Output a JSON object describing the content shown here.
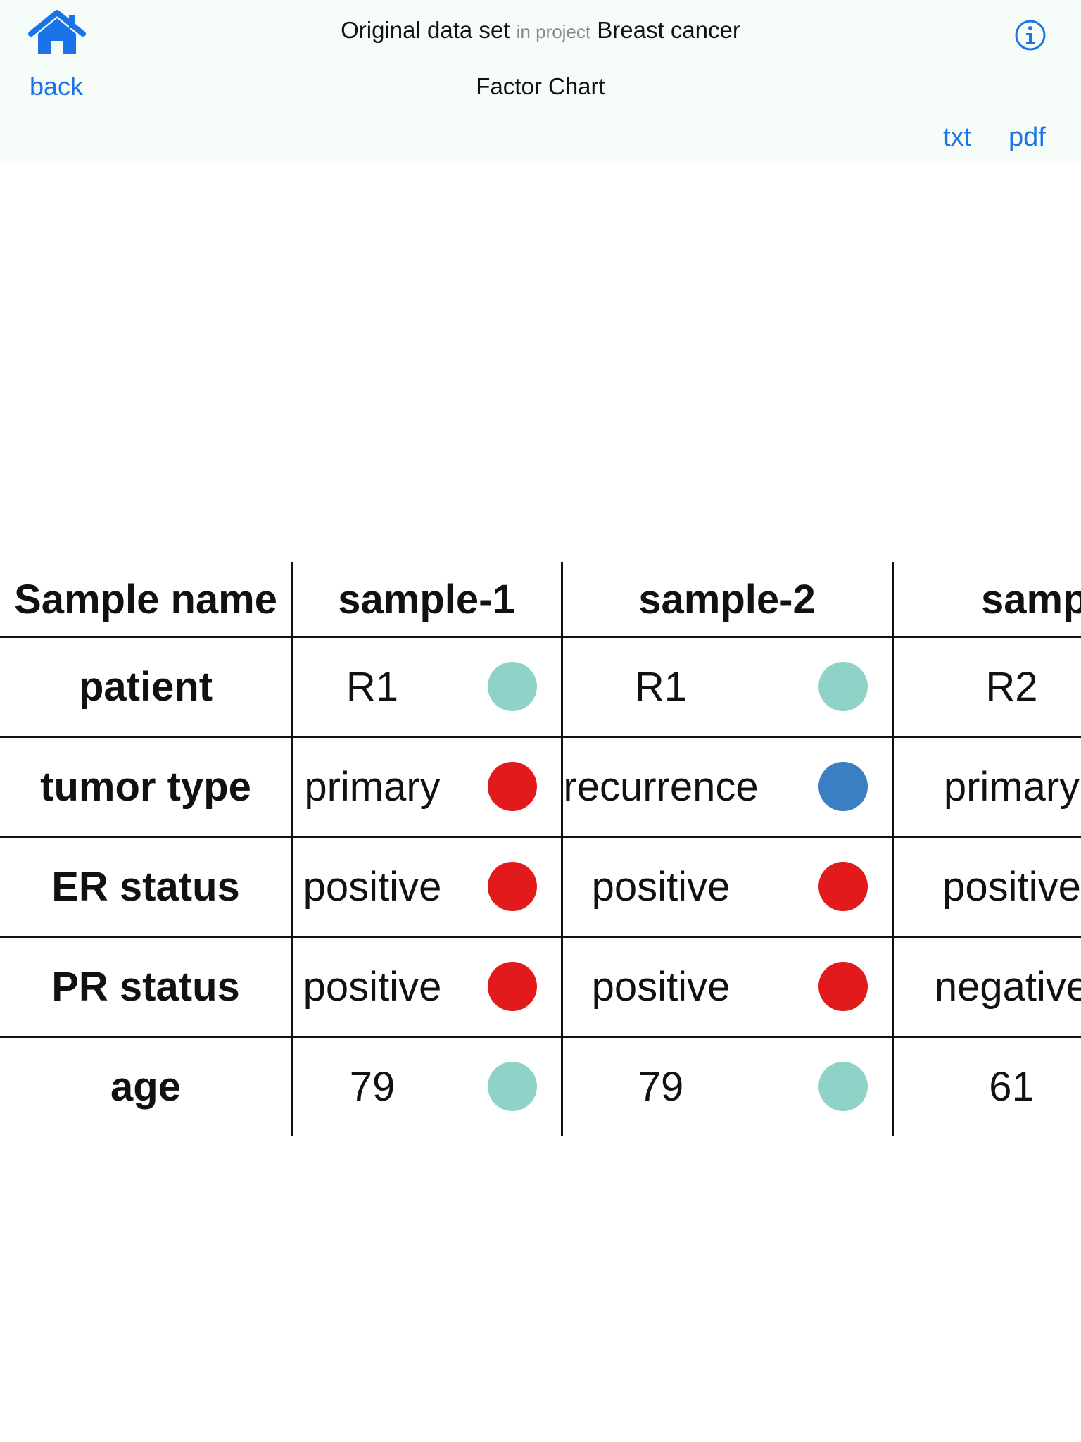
{
  "header": {
    "back_label": "back",
    "dataset_name": "Original data set",
    "in_project_label": "in project",
    "project_name": "Breast cancer",
    "view_title": "Factor Chart",
    "export_txt_label": "txt",
    "export_pdf_label": "pdf",
    "icons": {
      "home": "home-icon",
      "info": "info-icon"
    },
    "accent_color": "#1a73e8"
  },
  "table": {
    "corner_label": "Sample name",
    "columns": [
      "sample-1",
      "sample-2",
      "sample"
    ],
    "rows": [
      {
        "factor": "patient",
        "cells": [
          {
            "value": "R1",
            "color": "#8fd3c8"
          },
          {
            "value": "R1",
            "color": "#8fd3c8"
          },
          {
            "value": "R2"
          }
        ]
      },
      {
        "factor": "tumor type",
        "cells": [
          {
            "value": "primary",
            "color": "#e31a1c"
          },
          {
            "value": "recurrence",
            "color": "#3a7fc1"
          },
          {
            "value": "primary"
          }
        ]
      },
      {
        "factor": "ER status",
        "cells": [
          {
            "value": "positive",
            "color": "#e31a1c"
          },
          {
            "value": "positive",
            "color": "#e31a1c"
          },
          {
            "value": "positive"
          }
        ]
      },
      {
        "factor": "PR status",
        "cells": [
          {
            "value": "positive",
            "color": "#e31a1c"
          },
          {
            "value": "positive",
            "color": "#e31a1c"
          },
          {
            "value": "negative"
          }
        ]
      },
      {
        "factor": "age",
        "cells": [
          {
            "value": "79",
            "color": "#8fd3c8"
          },
          {
            "value": "79",
            "color": "#8fd3c8"
          },
          {
            "value": "61"
          }
        ]
      }
    ]
  }
}
